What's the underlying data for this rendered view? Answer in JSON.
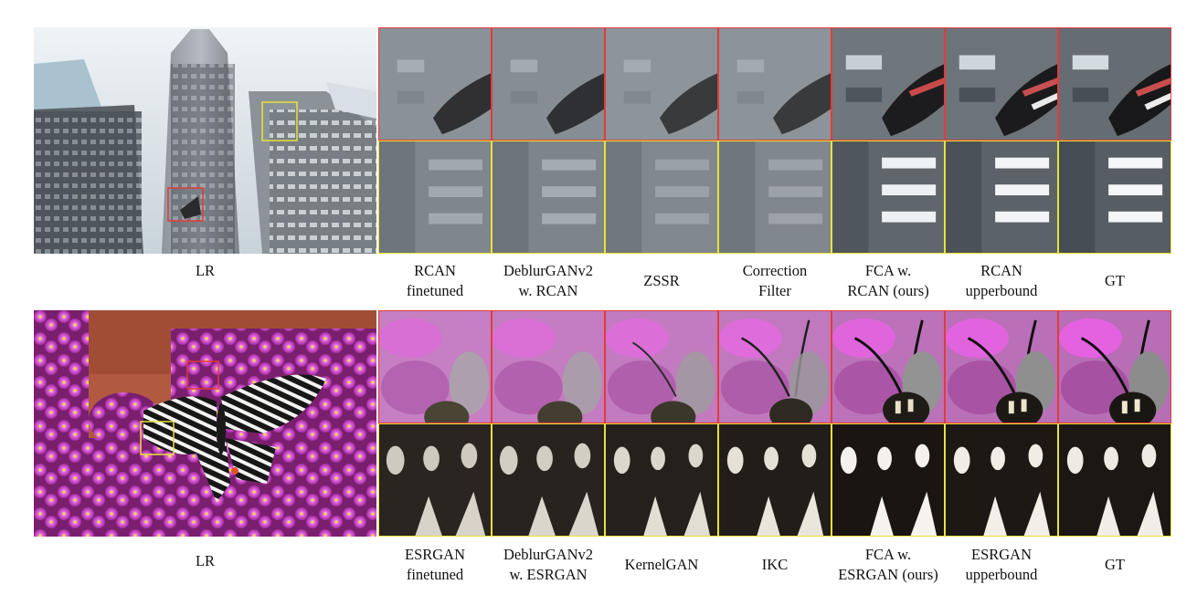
{
  "rows": [
    {
      "lr_label": "LR",
      "methods": [
        "RCAN\nfinetuned",
        "DeblurGANv2\nw. RCAN",
        "ZSSR",
        "Correction\nFilter",
        "FCA w.\nRCAN (ours)",
        "RCAN\nupperbound",
        "GT"
      ]
    },
    {
      "lr_label": "LR",
      "methods": [
        "ESRGAN\nfinetuned",
        "DeblurGANv2\nw. ESRGAN",
        "KernelGAN",
        "IKC",
        "FCA w.\nESRGAN (ours)",
        "ESRGAN\nupperbound",
        "GT"
      ]
    }
  ],
  "colors": {
    "red_box": "#e23b3b",
    "yellow_box": "#e8e23a"
  }
}
